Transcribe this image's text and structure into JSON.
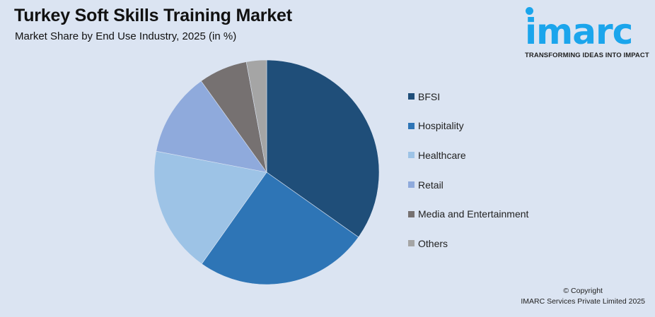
{
  "header": {
    "title": "Turkey Soft Skills Training Market",
    "subtitle": "Market Share by End Use Industry, 2025 (in %)"
  },
  "logo": {
    "wordmark": "imarc",
    "tagline": "TRANSFORMING IDEAS INTO IMPACT",
    "color": "#1ba5ec"
  },
  "legend": {
    "items": [
      {
        "label": "BFSI",
        "color": "#1f4e79"
      },
      {
        "label": "Hospitality",
        "color": "#2e75b6"
      },
      {
        "label": "Healthcare",
        "color": "#9dc3e6"
      },
      {
        "label": "Retail",
        "color": "#8faadc"
      },
      {
        "label": "Media and Entertainment",
        "color": "#767171"
      },
      {
        "label": "Others",
        "color": "#a5a5a5"
      }
    ]
  },
  "footer": {
    "line1": "© Copyright",
    "line2": "IMARC Services Private Limited 2025"
  },
  "chart_data": {
    "type": "pie",
    "title": "Turkey Soft Skills Training Market",
    "subtitle": "Market Share by End Use Industry, 2025 (in %)",
    "categories": [
      "BFSI",
      "Hospitality",
      "Healthcare",
      "Retail",
      "Media and Entertainment",
      "Others"
    ],
    "values": [
      34.8,
      25.0,
      18.2,
      12.1,
      7.0,
      2.9
    ],
    "colors": [
      "#1f4e79",
      "#2e75b6",
      "#9dc3e6",
      "#8faadc",
      "#767171",
      "#a5a5a5"
    ],
    "start_angle_deg": 0,
    "direction": "clockwise",
    "legend_position": "right",
    "data_labels": false
  }
}
